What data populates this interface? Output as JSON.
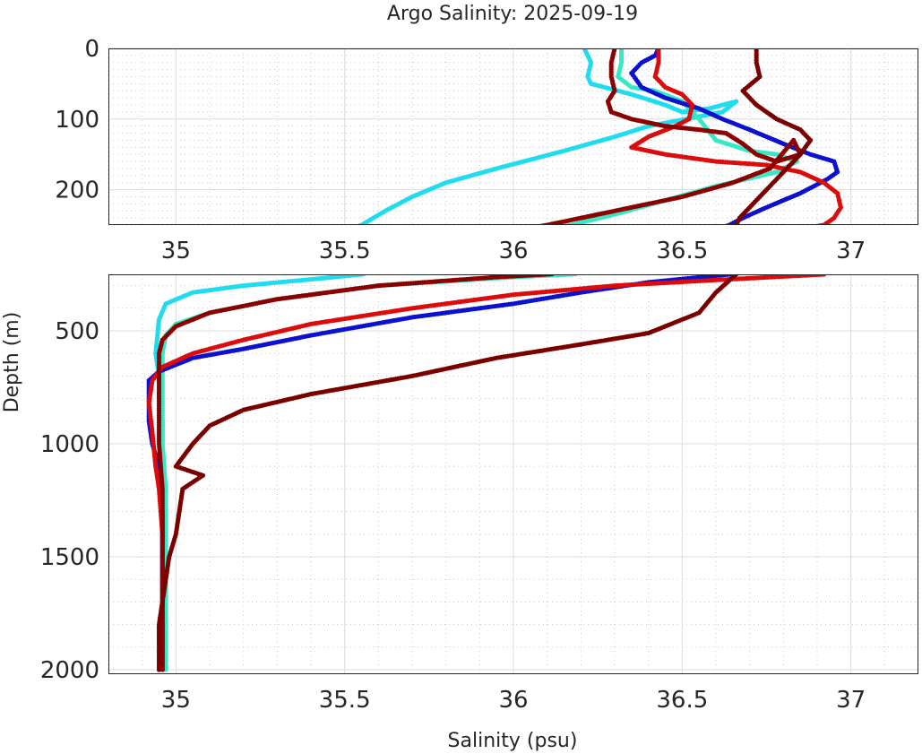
{
  "chart_data": {
    "type": "scatter",
    "title": "Argo Salinity: 2025-09-19",
    "xlabel": "Salinity (psu)",
    "ylabel": "Depth (m)",
    "panels": [
      {
        "name": "upper",
        "xlim": [
          34.8,
          37.2
        ],
        "ylim": [
          250,
          0
        ],
        "xticks": [
          35,
          35.5,
          36,
          36.5,
          37
        ],
        "xtick_labels": [
          "35",
          "35.5",
          "36",
          "36.5",
          "37"
        ],
        "yticks": [
          0,
          100,
          200
        ],
        "ytick_labels": [
          "0",
          "100",
          "200"
        ]
      },
      {
        "name": "lower",
        "xlim": [
          34.8,
          37.2
        ],
        "ylim": [
          2020,
          250
        ],
        "xticks": [
          35,
          35.5,
          36,
          36.5,
          37
        ],
        "xtick_labels": [
          "35",
          "35.5",
          "36",
          "36.5",
          "37"
        ],
        "yticks": [
          500,
          1000,
          1500,
          2000
        ],
        "ytick_labels": [
          "500",
          "1000",
          "1500",
          "2000"
        ]
      }
    ],
    "series": [
      {
        "name": "profile-cyan",
        "color": "#1fdcee",
        "points": [
          [
            36.21,
            0
          ],
          [
            36.23,
            20
          ],
          [
            36.22,
            40
          ],
          [
            36.23,
            50
          ],
          [
            36.35,
            65
          ],
          [
            36.45,
            80
          ],
          [
            36.5,
            90
          ],
          [
            36.58,
            85
          ],
          [
            36.66,
            75
          ],
          [
            36.62,
            90
          ],
          [
            36.4,
            110
          ],
          [
            36.3,
            125
          ],
          [
            36.15,
            145
          ],
          [
            35.95,
            170
          ],
          [
            35.8,
            190
          ],
          [
            35.7,
            210
          ],
          [
            35.62,
            230
          ],
          [
            35.55,
            250
          ],
          [
            35.45,
            265
          ],
          [
            35.2,
            300
          ],
          [
            35.05,
            330
          ],
          [
            34.97,
            380
          ],
          [
            34.95,
            450
          ],
          [
            34.94,
            600
          ],
          [
            34.95,
            700
          ],
          [
            34.95,
            800
          ],
          [
            34.96,
            900
          ],
          [
            34.96,
            1000
          ],
          [
            34.96,
            1200
          ],
          [
            34.97,
            1400
          ],
          [
            34.97,
            1600
          ],
          [
            34.97,
            1800
          ],
          [
            34.97,
            2010
          ]
        ]
      },
      {
        "name": "profile-aqua",
        "color": "#38e8c4",
        "points": [
          [
            36.32,
            0
          ],
          [
            36.32,
            20
          ],
          [
            36.31,
            40
          ],
          [
            36.35,
            55
          ],
          [
            36.42,
            60
          ],
          [
            36.5,
            75
          ],
          [
            36.55,
            100
          ],
          [
            36.6,
            130
          ],
          [
            36.7,
            145
          ],
          [
            36.78,
            150
          ],
          [
            36.84,
            160
          ],
          [
            36.78,
            175
          ],
          [
            36.6,
            195
          ],
          [
            36.45,
            215
          ],
          [
            36.3,
            235
          ],
          [
            36.17,
            250
          ],
          [
            36.0,
            262
          ],
          [
            35.6,
            300
          ],
          [
            35.3,
            360
          ],
          [
            35.1,
            420
          ],
          [
            35.0,
            470
          ],
          [
            34.97,
            520
          ],
          [
            34.96,
            600
          ],
          [
            34.96,
            800
          ],
          [
            34.96,
            1000
          ],
          [
            34.97,
            1200
          ],
          [
            34.97,
            1500
          ],
          [
            34.97,
            1800
          ],
          [
            34.97,
            2010
          ]
        ]
      },
      {
        "name": "profile-blue",
        "color": "#0c11cf",
        "points": [
          [
            36.43,
            0
          ],
          [
            36.42,
            10
          ],
          [
            36.38,
            20
          ],
          [
            36.35,
            35
          ],
          [
            36.38,
            55
          ],
          [
            36.45,
            70
          ],
          [
            36.55,
            85
          ],
          [
            36.62,
            100
          ],
          [
            36.7,
            115
          ],
          [
            36.8,
            135
          ],
          [
            36.88,
            150
          ],
          [
            36.95,
            160
          ],
          [
            36.96,
            175
          ],
          [
            36.93,
            185
          ],
          [
            36.85,
            205
          ],
          [
            36.75,
            225
          ],
          [
            36.68,
            240
          ],
          [
            36.64,
            250
          ],
          [
            36.4,
            285
          ],
          [
            36.2,
            330
          ],
          [
            36.0,
            380
          ],
          [
            35.7,
            440
          ],
          [
            35.4,
            520
          ],
          [
            35.2,
            580
          ],
          [
            35.05,
            620
          ],
          [
            34.95,
            680
          ],
          [
            34.92,
            720
          ],
          [
            34.92,
            800
          ],
          [
            34.92,
            900
          ],
          [
            34.93,
            1000
          ],
          [
            34.95,
            1100
          ],
          [
            34.96,
            1300
          ],
          [
            34.96,
            1500
          ],
          [
            34.96,
            1700
          ],
          [
            34.96,
            1900
          ],
          [
            34.96,
            2010
          ]
        ]
      },
      {
        "name": "profile-red",
        "color": "#dc0c0c",
        "points": [
          [
            36.43,
            0
          ],
          [
            36.43,
            20
          ],
          [
            36.42,
            40
          ],
          [
            36.45,
            55
          ],
          [
            36.5,
            65
          ],
          [
            36.53,
            80
          ],
          [
            36.52,
            100
          ],
          [
            36.48,
            110
          ],
          [
            36.4,
            125
          ],
          [
            36.35,
            140
          ],
          [
            36.45,
            150
          ],
          [
            36.6,
            160
          ],
          [
            36.75,
            165
          ],
          [
            36.85,
            175
          ],
          [
            36.92,
            190
          ],
          [
            36.96,
            205
          ],
          [
            36.97,
            225
          ],
          [
            36.95,
            240
          ],
          [
            36.92,
            250
          ],
          [
            36.6,
            275
          ],
          [
            36.3,
            300
          ],
          [
            36.0,
            340
          ],
          [
            35.7,
            400
          ],
          [
            35.4,
            470
          ],
          [
            35.2,
            540
          ],
          [
            35.05,
            600
          ],
          [
            34.96,
            660
          ],
          [
            34.93,
            720
          ],
          [
            34.92,
            820
          ],
          [
            34.93,
            950
          ],
          [
            34.94,
            1100
          ],
          [
            34.95,
            1200
          ],
          [
            34.96,
            1400
          ],
          [
            34.96,
            1600
          ],
          [
            34.96,
            1800
          ],
          [
            34.96,
            2010
          ]
        ]
      },
      {
        "name": "profile-darkred",
        "color": "#8b0000",
        "points": [
          [
            36.3,
            0
          ],
          [
            36.29,
            20
          ],
          [
            36.29,
            40
          ],
          [
            36.3,
            60
          ],
          [
            36.28,
            75
          ],
          [
            36.29,
            90
          ],
          [
            36.35,
            100
          ],
          [
            36.45,
            110
          ],
          [
            36.55,
            115
          ],
          [
            36.63,
            120
          ],
          [
            36.68,
            135
          ],
          [
            36.72,
            150
          ],
          [
            36.78,
            160
          ],
          [
            36.85,
            150
          ],
          [
            36.83,
            130
          ],
          [
            36.76,
            170
          ],
          [
            36.65,
            190
          ],
          [
            36.5,
            210
          ],
          [
            36.3,
            230
          ],
          [
            36.1,
            250
          ],
          [
            35.95,
            262
          ],
          [
            35.6,
            300
          ],
          [
            35.3,
            360
          ],
          [
            35.1,
            420
          ],
          [
            35.0,
            480
          ],
          [
            34.96,
            540
          ],
          [
            34.95,
            600
          ],
          [
            34.95,
            700
          ],
          [
            34.95,
            800
          ],
          [
            34.95,
            1000
          ],
          [
            34.96,
            1200
          ],
          [
            34.96,
            1400
          ],
          [
            34.96,
            1600
          ],
          [
            34.96,
            1800
          ],
          [
            34.96,
            2010
          ]
        ]
      },
      {
        "name": "profile-maroon",
        "color": "#7a0000",
        "points": [
          [
            36.72,
            0
          ],
          [
            36.72,
            20
          ],
          [
            36.73,
            40
          ],
          [
            36.68,
            60
          ],
          [
            36.72,
            80
          ],
          [
            36.78,
            100
          ],
          [
            36.85,
            115
          ],
          [
            36.88,
            130
          ],
          [
            36.85,
            150
          ],
          [
            36.82,
            165
          ],
          [
            36.78,
            185
          ],
          [
            36.74,
            205
          ],
          [
            36.7,
            225
          ],
          [
            36.67,
            240
          ],
          [
            36.66,
            250
          ],
          [
            36.6,
            330
          ],
          [
            36.55,
            420
          ],
          [
            36.4,
            510
          ],
          [
            36.2,
            560
          ],
          [
            35.95,
            620
          ],
          [
            35.7,
            700
          ],
          [
            35.4,
            780
          ],
          [
            35.2,
            850
          ],
          [
            35.1,
            920
          ],
          [
            35.05,
            1000
          ],
          [
            35.0,
            1100
          ],
          [
            35.08,
            1140
          ],
          [
            35.02,
            1200
          ],
          [
            35.01,
            1300
          ],
          [
            35.0,
            1400
          ],
          [
            34.98,
            1500
          ],
          [
            34.97,
            1600
          ],
          [
            34.96,
            1700
          ],
          [
            34.95,
            1800
          ],
          [
            34.95,
            1900
          ],
          [
            34.95,
            2010
          ]
        ]
      }
    ]
  }
}
